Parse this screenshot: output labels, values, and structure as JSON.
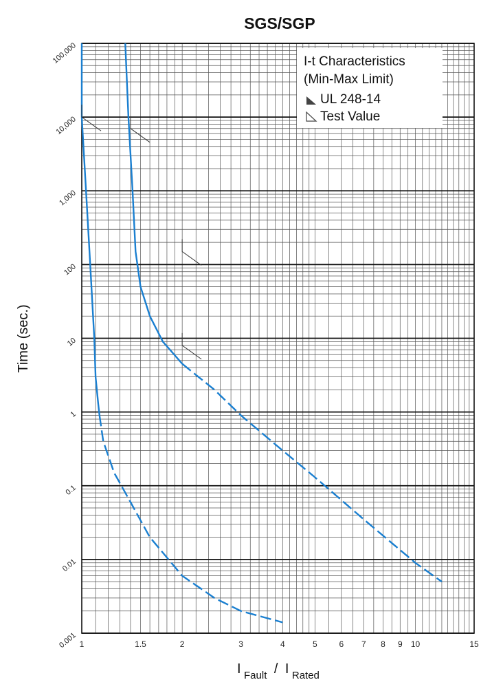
{
  "chart_data": {
    "type": "line",
    "title": "SGS/SGP",
    "ylabel": "Time (sec.)",
    "xlabel": {
      "prefix1": "I",
      "sub1": "Fault",
      "slash": "/",
      "prefix2": "I",
      "sub2": "Rated"
    },
    "x_scale": "log",
    "y_scale": "log",
    "xlim": [
      1,
      15
    ],
    "ylim": [
      0.001,
      100000
    ],
    "x_ticks": [
      {
        "value": 1,
        "label": "1"
      },
      {
        "value": 1.5,
        "label": "1.5"
      },
      {
        "value": 2,
        "label": "2"
      },
      {
        "value": 3,
        "label": "3"
      },
      {
        "value": 4,
        "label": "4"
      },
      {
        "value": 5,
        "label": "5"
      },
      {
        "value": 6,
        "label": "6"
      },
      {
        "value": 7,
        "label": "7"
      },
      {
        "value": 8,
        "label": "8"
      },
      {
        "value": 9,
        "label": "9"
      },
      {
        "value": 10,
        "label": "10"
      },
      {
        "value": 15,
        "label": "15"
      }
    ],
    "y_ticks": [
      {
        "value": 100000,
        "label": "100,000"
      },
      {
        "value": 10000,
        "label": "10,000"
      },
      {
        "value": 1000,
        "label": "1,000"
      },
      {
        "value": 100,
        "label": "100"
      },
      {
        "value": 10,
        "label": "10"
      },
      {
        "value": 1,
        "label": "1"
      },
      {
        "value": 0.1,
        "label": "0.1"
      },
      {
        "value": 0.01,
        "label": "0.01"
      },
      {
        "value": 0.001,
        "label": "0.001"
      }
    ],
    "grid": true,
    "legend": {
      "placement": "top-right",
      "title_lines": [
        "I-t Characteristics",
        "(Min-Max Limit)"
      ],
      "entries": [
        {
          "label": "UL 248-14",
          "marker": "filled-triangle"
        },
        {
          "label": "Test Value",
          "marker": "open-triangle"
        }
      ]
    },
    "series": [
      {
        "style": "min-limit",
        "color": "#1a7fd0",
        "solid": [
          [
            1.0,
            100000
          ],
          [
            1.0,
            10000
          ],
          [
            1.03,
            1000
          ],
          [
            1.06,
            100
          ],
          [
            1.09,
            10
          ],
          [
            1.1,
            3
          ],
          [
            1.12,
            1.3
          ],
          [
            1.13,
            0.9
          ]
        ],
        "dashed": [
          [
            1.13,
            0.9
          ],
          [
            1.16,
            0.4
          ],
          [
            1.25,
            0.15
          ],
          [
            1.4,
            0.06
          ],
          [
            1.6,
            0.02
          ],
          [
            2.0,
            0.006
          ],
          [
            2.5,
            0.003
          ],
          [
            3.0,
            0.002
          ],
          [
            4.0,
            0.0014
          ]
        ]
      },
      {
        "style": "max-limit",
        "color": "#1a7fd0",
        "solid": [
          [
            1.35,
            100000
          ],
          [
            1.38,
            10000
          ],
          [
            1.42,
            1000
          ],
          [
            1.45,
            150
          ],
          [
            1.5,
            50
          ],
          [
            1.6,
            20
          ],
          [
            1.75,
            9
          ],
          [
            2.0,
            4.5
          ]
        ],
        "dashed": [
          [
            2.0,
            4.5
          ],
          [
            2.5,
            2
          ],
          [
            3.0,
            0.9
          ],
          [
            4.0,
            0.3
          ],
          [
            5.0,
            0.13
          ],
          [
            7.0,
            0.035
          ],
          [
            10.0,
            0.009
          ],
          [
            12.0,
            0.005
          ]
        ]
      }
    ],
    "markers": [
      {
        "type": "open-triangle",
        "x": 1.0,
        "y": 10000
      },
      {
        "type": "open-triangle",
        "x": 1.4,
        "y": 7000
      },
      {
        "type": "open-triangle",
        "x": 2.0,
        "y": 150
      },
      {
        "type": "open-triangle",
        "x": 2.0,
        "y": 8
      }
    ]
  }
}
